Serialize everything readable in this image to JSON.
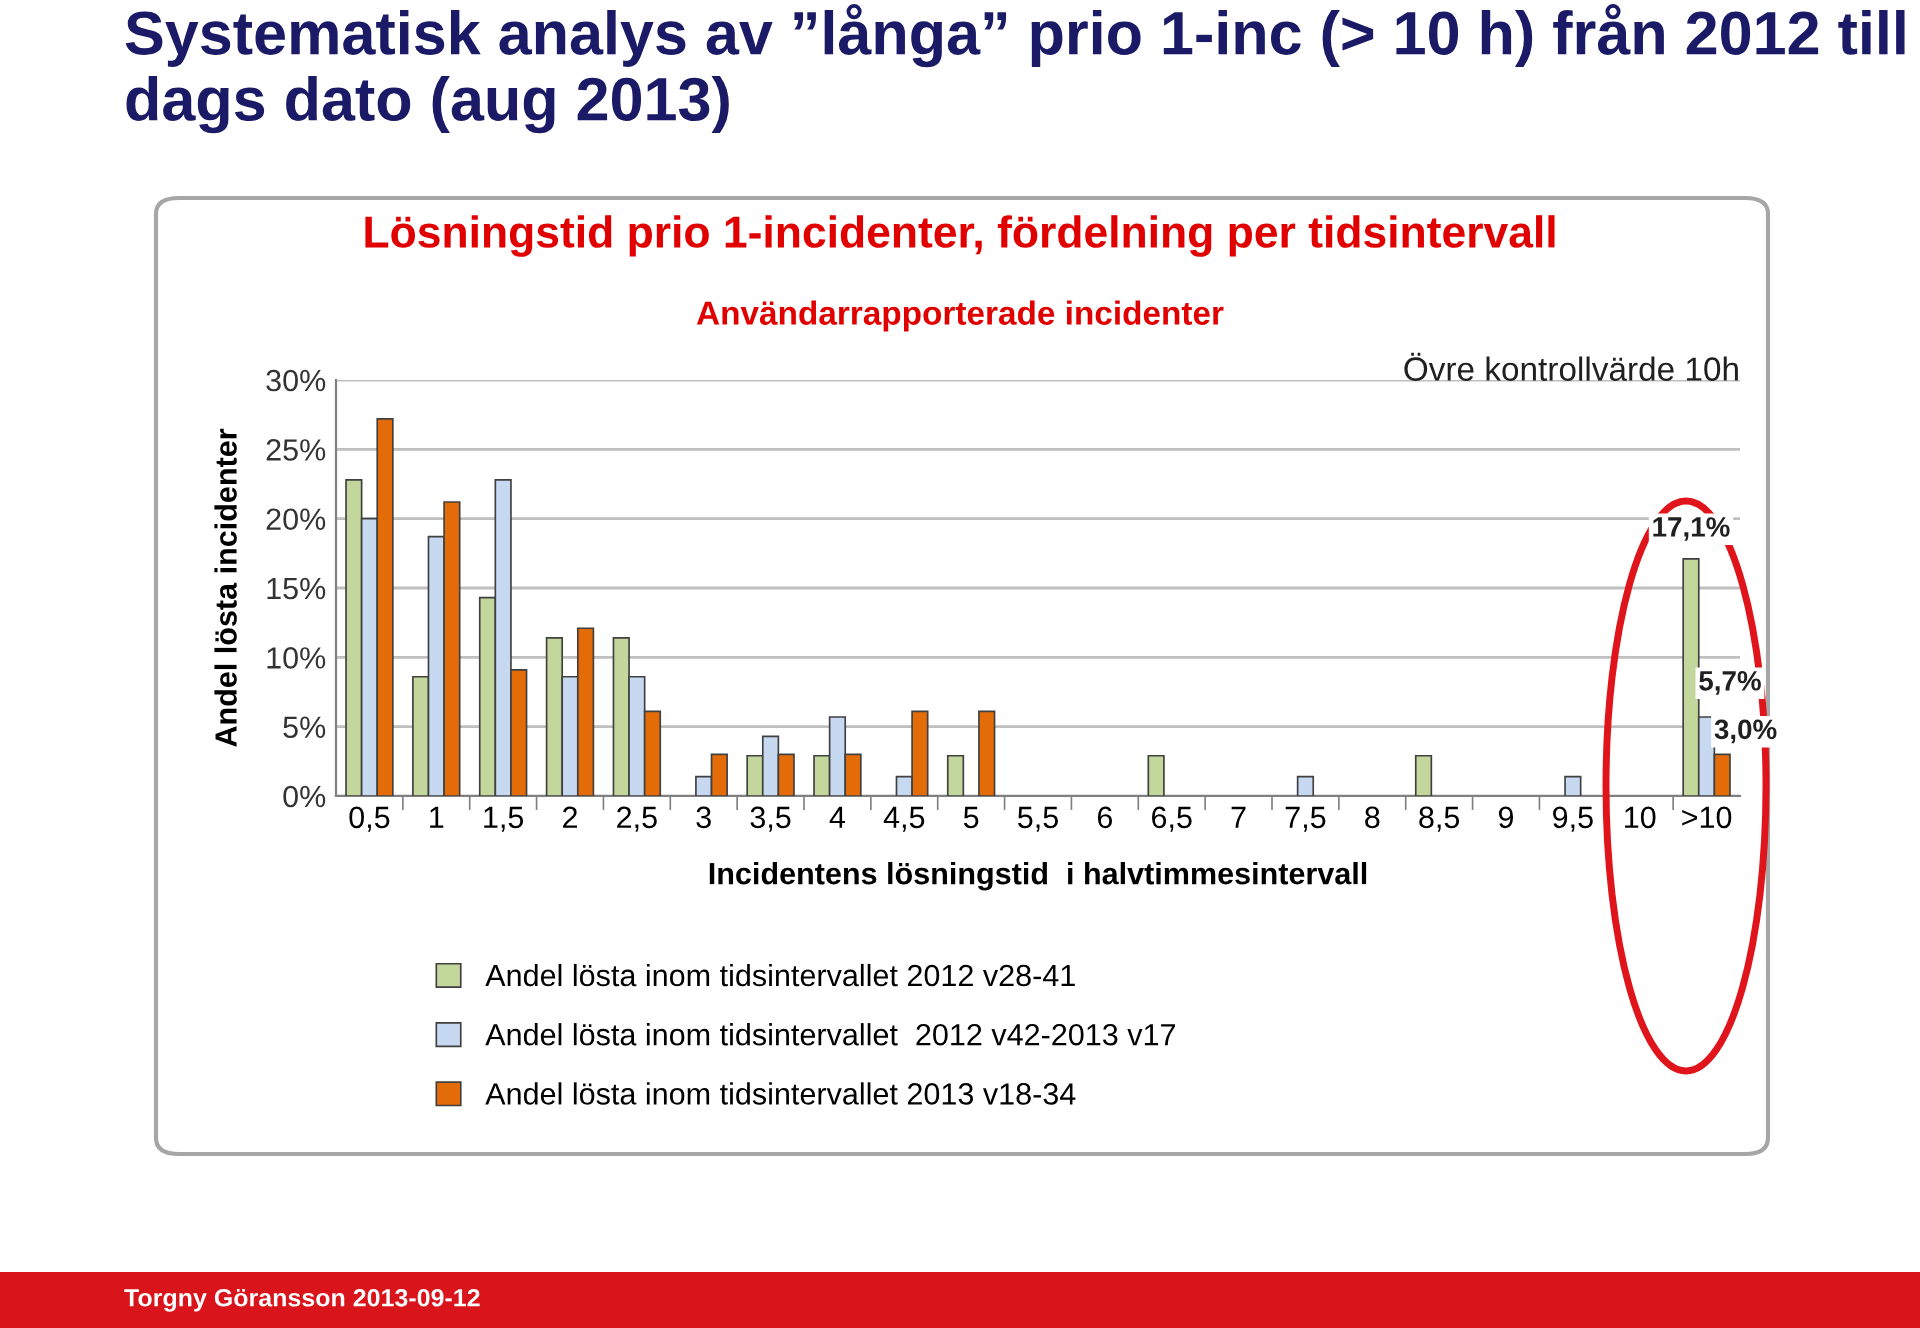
{
  "chart_data": {
    "type": "bar",
    "title": "Systematisk analys av ”långa” prio 1-inc (> 10 h) från 2012 till dags dato (aug 2013)",
    "subtitle": "Lösningstid prio 1-incidenter, fördelning per tidsintervall",
    "annotations": [
      "Användarrapporterade incidenter",
      "Övre kontrollvärde 10h",
      "Torgny Göransson 2013-09-12"
    ],
    "xlabel": "Incidentens lösningstid  i halvtimmesintervall",
    "ylabel": "Andel lösta incidenter",
    "categories": [
      "0,5",
      "1",
      "1,5",
      "2",
      "2,5",
      "3",
      "3,5",
      "4",
      "4,5",
      "5",
      "5,5",
      "6",
      "6,5",
      "7",
      "7,5",
      "8",
      "8,5",
      "9",
      "9,5",
      "10",
      ">10"
    ],
    "series": [
      {
        "name": "Andel lösta inom tidsintervallet 2012 v28-41",
        "color": "#c3d69b",
        "values": [
          22.8,
          8.6,
          14.3,
          11.4,
          11.4,
          null,
          2.9,
          2.9,
          null,
          2.9,
          null,
          null,
          2.9,
          null,
          null,
          null,
          2.9,
          null,
          null,
          null,
          17.1
        ],
        "value_labels": [
          null,
          null,
          null,
          null,
          null,
          null,
          null,
          null,
          null,
          null,
          null,
          null,
          null,
          null,
          null,
          null,
          null,
          null,
          null,
          null,
          "17,1%"
        ]
      },
      {
        "name": "Andel lösta inom tidsintervallet  2012 v42-2013 v17",
        "color": "#c6d9f1",
        "values": [
          20.0,
          18.7,
          22.8,
          8.6,
          8.6,
          1.4,
          4.3,
          5.7,
          1.4,
          null,
          null,
          null,
          null,
          null,
          1.4,
          null,
          null,
          null,
          1.4,
          null,
          5.7
        ],
        "value_labels": [
          null,
          null,
          null,
          null,
          null,
          null,
          null,
          null,
          null,
          null,
          null,
          null,
          null,
          null,
          null,
          null,
          null,
          null,
          null,
          null,
          "5,7%"
        ]
      },
      {
        "name": "Andel lösta inom tidsintervallet 2013 v18-34",
        "color": "#e36c09",
        "values": [
          27.2,
          21.2,
          9.1,
          12.1,
          6.1,
          3.0,
          3.0,
          3.0,
          6.1,
          6.1,
          null,
          null,
          null,
          null,
          null,
          null,
          null,
          null,
          null,
          null,
          3.0
        ],
        "value_labels": [
          null,
          null,
          null,
          null,
          null,
          null,
          null,
          null,
          null,
          null,
          null,
          null,
          null,
          null,
          null,
          null,
          null,
          null,
          null,
          null,
          "3,0%"
        ]
      }
    ],
    "ylim": [
      0,
      30
    ],
    "yticks": [
      {
        "value": 0,
        "label": "0%"
      },
      {
        "value": 5,
        "label": "5%"
      },
      {
        "value": 10,
        "label": "10%"
      },
      {
        "value": 15,
        "label": "15%"
      },
      {
        "value": 20,
        "label": "20%"
      },
      {
        "value": 25,
        "label": "25%"
      },
      {
        "value": 30,
        "label": "30%"
      }
    ],
    "grid": "y",
    "legend": "bottom"
  }
}
